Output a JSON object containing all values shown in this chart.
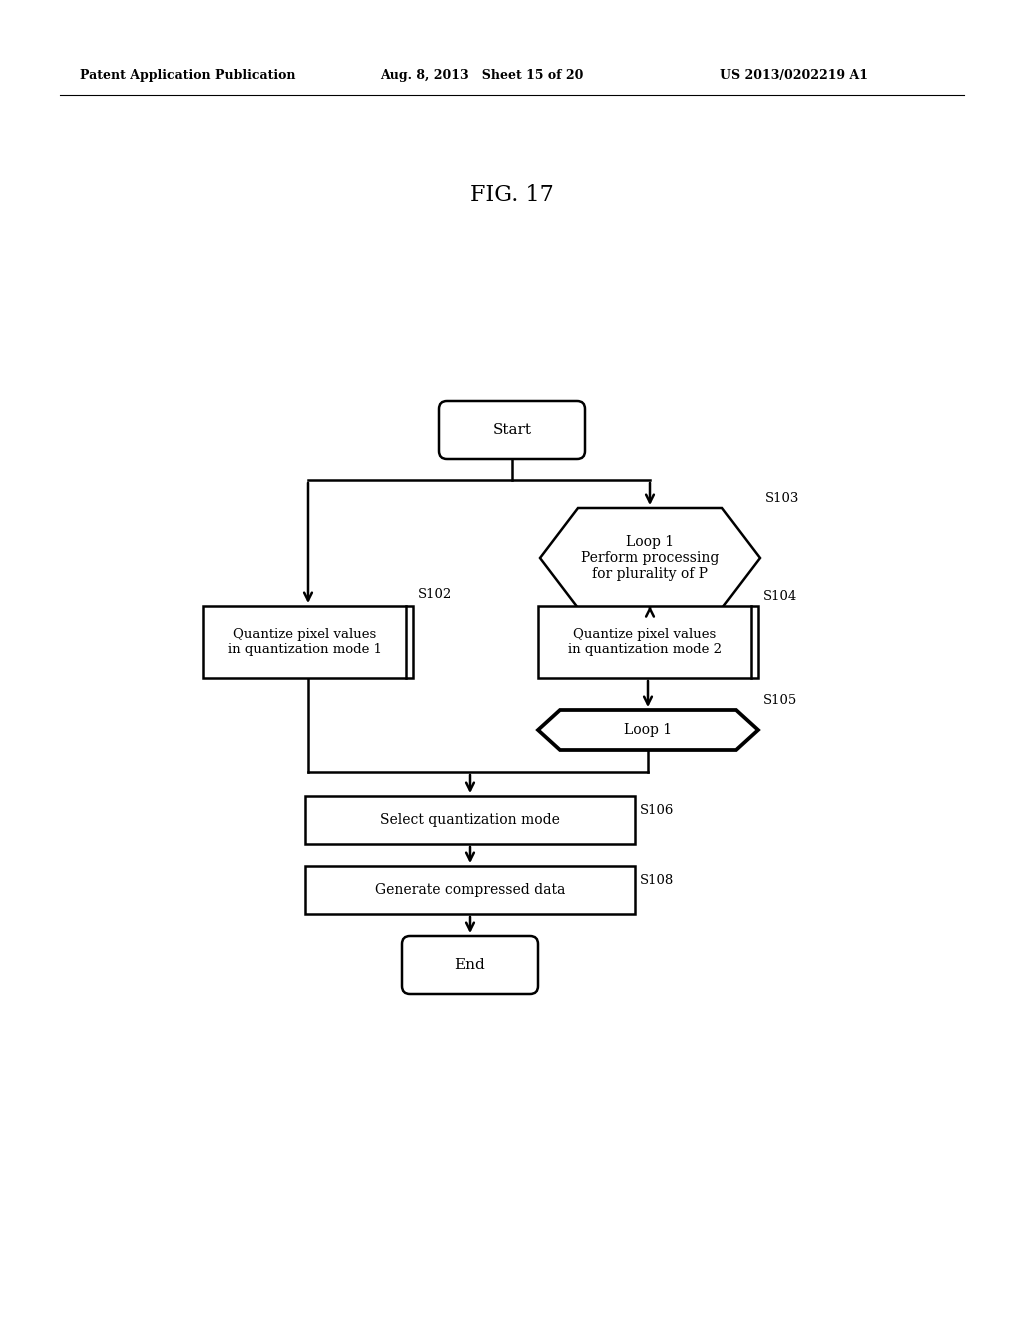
{
  "title": "FIG. 17",
  "header_left": "Patent Application Publication",
  "header_mid": "Aug. 8, 2013   Sheet 15 of 20",
  "header_right": "US 2013/0202219 A1",
  "background_color": "#ffffff",
  "fig_width": 10.24,
  "fig_height": 13.2
}
